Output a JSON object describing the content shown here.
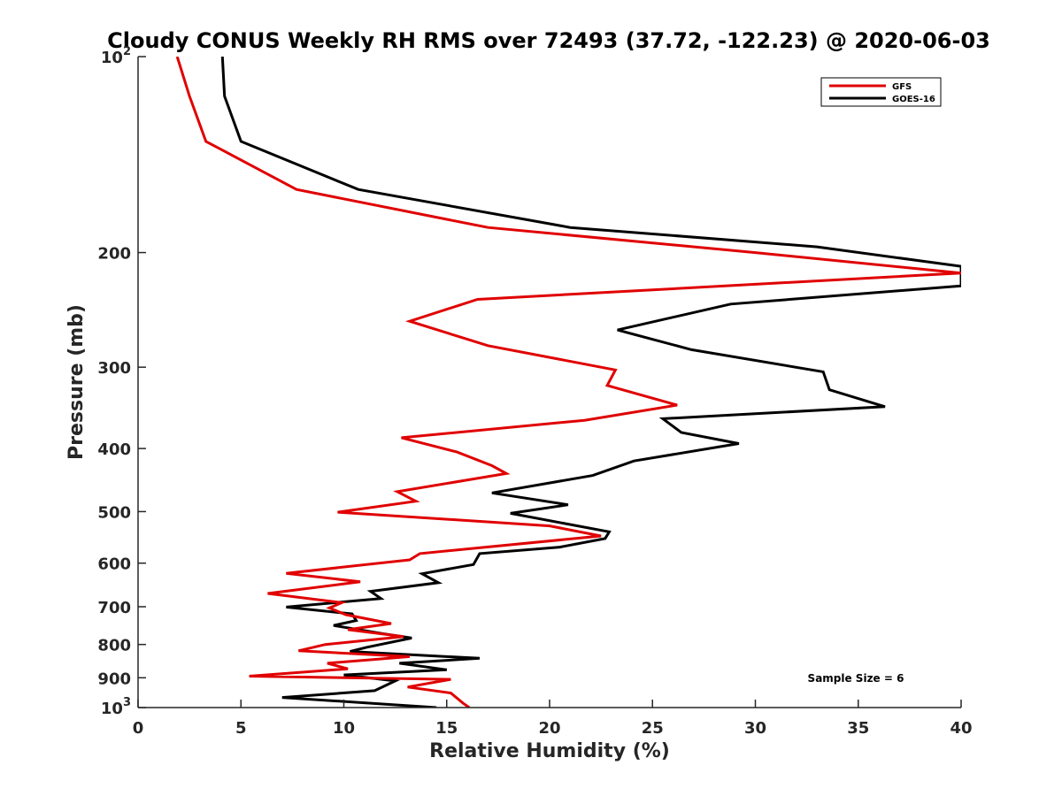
{
  "chart_data": {
    "type": "line",
    "title": "Cloudy CONUS Weekly RH RMS over 72493 (37.72, -122.23) @ 2020-06-03",
    "xlabel": "Relative Humidity (%)",
    "ylabel": "Pressure (mb)",
    "xlim": [
      0,
      40
    ],
    "ylim": [
      100,
      1000
    ],
    "y_scale": "log",
    "y_reversed": true,
    "x_ticks": [
      "0",
      "5",
      "10",
      "15",
      "20",
      "25",
      "30",
      "35",
      "40"
    ],
    "y_ticks": [
      {
        "value": 100,
        "base": "10",
        "exp": "2"
      },
      {
        "value": 200,
        "label": "200"
      },
      {
        "value": 300,
        "label": "300"
      },
      {
        "value": 400,
        "label": "400"
      },
      {
        "value": 500,
        "label": "500"
      },
      {
        "value": 600,
        "label": "600"
      },
      {
        "value": 700,
        "label": "700"
      },
      {
        "value": 800,
        "label": "800"
      },
      {
        "value": 900,
        "label": "900"
      },
      {
        "value": 1000,
        "base": "10",
        "exp": "3"
      }
    ],
    "legend_position": "top-right",
    "annotation": "Sample Size = 6",
    "series": [
      {
        "name": "GFS",
        "color": "#e00000",
        "points": [
          [
            1.9,
            100
          ],
          [
            2.5,
            115
          ],
          [
            3.3,
            135
          ],
          [
            7.7,
            160
          ],
          [
            17,
            183
          ],
          [
            30,
            200
          ],
          [
            40,
            215
          ],
          [
            16.5,
            236
          ],
          [
            13.2,
            255
          ],
          [
            17,
            278
          ],
          [
            23.2,
            303
          ],
          [
            22.8,
            320
          ],
          [
            26.2,
            343
          ],
          [
            21.7,
            362
          ],
          [
            12.8,
            385
          ],
          [
            15.5,
            405
          ],
          [
            17.2,
            425
          ],
          [
            17.9,
            437
          ],
          [
            12.6,
            466
          ],
          [
            13.5,
            482
          ],
          [
            9.7,
            501
          ],
          [
            20,
            526
          ],
          [
            22.5,
            545
          ],
          [
            13.7,
            580
          ],
          [
            13.2,
            593
          ],
          [
            7.2,
            622
          ],
          [
            10.8,
            641
          ],
          [
            6.3,
            668
          ],
          [
            9.9,
            690
          ],
          [
            9.3,
            703
          ],
          [
            10.1,
            720
          ],
          [
            12.3,
            743
          ],
          [
            10.2,
            759
          ],
          [
            12.9,
            778
          ],
          [
            9.1,
            800
          ],
          [
            7.8,
            818
          ],
          [
            13.2,
            835
          ],
          [
            9.2,
            855
          ],
          [
            10.2,
            872
          ],
          [
            5.4,
            895
          ],
          [
            15.2,
            905
          ],
          [
            13.1,
            930
          ],
          [
            15.2,
            950
          ],
          [
            15.8,
            985
          ],
          [
            16.1,
            1000
          ]
        ]
      },
      {
        "name": "GOES-16",
        "color": "#000000",
        "points": [
          [
            4.1,
            100
          ],
          [
            4.2,
            115
          ],
          [
            5,
            135
          ],
          [
            10.7,
            160
          ],
          [
            21,
            183
          ],
          [
            33,
            196
          ],
          [
            40,
            210
          ],
          [
            40,
            225
          ],
          [
            28.8,
            240
          ],
          [
            23.3,
            263
          ],
          [
            26.9,
            282
          ],
          [
            33.3,
            305
          ],
          [
            33.6,
            325
          ],
          [
            36.3,
            345
          ],
          [
            25.5,
            360
          ],
          [
            26.4,
            378
          ],
          [
            29.2,
            393
          ],
          [
            24.1,
            418
          ],
          [
            22.1,
            440
          ],
          [
            17.2,
            468
          ],
          [
            20.9,
            488
          ],
          [
            18.1,
            503
          ],
          [
            22.9,
            537
          ],
          [
            22.7,
            550
          ],
          [
            20.5,
            567
          ],
          [
            16.6,
            580
          ],
          [
            16.3,
            603
          ],
          [
            13.8,
            623
          ],
          [
            14.6,
            643
          ],
          [
            11.3,
            663
          ],
          [
            11.8,
            680
          ],
          [
            7.2,
            701
          ],
          [
            10.4,
            718
          ],
          [
            10.6,
            735
          ],
          [
            9.5,
            748
          ],
          [
            11.9,
            770
          ],
          [
            13.3,
            782
          ],
          [
            11.1,
            808
          ],
          [
            10.3,
            820
          ],
          [
            16.6,
            840
          ],
          [
            12.7,
            855
          ],
          [
            15.0,
            875
          ],
          [
            10.0,
            891
          ],
          [
            12.5,
            910
          ],
          [
            11.5,
            942
          ],
          [
            7.0,
            965
          ],
          [
            14.5,
            1000
          ]
        ]
      }
    ]
  }
}
